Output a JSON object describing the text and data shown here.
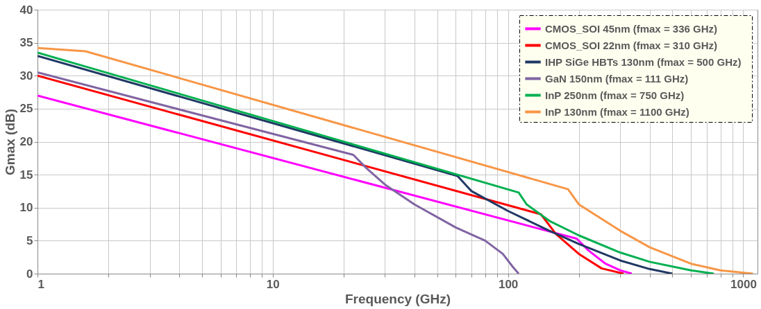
{
  "chart_data": {
    "type": "line",
    "xlabel": "Frequency (GHz)",
    "ylabel": "Gmax (dB)",
    "xlim": [
      1,
      1150
    ],
    "ylim": [
      0,
      40
    ],
    "xticks": [
      1,
      {
        "value": 2,
        "label": null
      },
      {
        "value": 3,
        "label": null
      },
      {
        "value": 4,
        "label": null
      },
      {
        "value": 5,
        "label": null
      },
      {
        "value": 6,
        "label": null
      },
      {
        "value": 7,
        "label": null
      },
      {
        "value": 8,
        "label": null
      },
      {
        "value": 9,
        "label": null
      },
      10,
      {
        "value": 20,
        "label": null
      },
      {
        "value": 30,
        "label": null
      },
      {
        "value": 40,
        "label": null
      },
      {
        "value": 50,
        "label": null
      },
      {
        "value": 60,
        "label": null
      },
      {
        "value": 70,
        "label": null
      },
      {
        "value": 80,
        "label": null
      },
      {
        "value": 90,
        "label": null
      },
      100,
      {
        "value": 200,
        "label": null
      },
      {
        "value": 300,
        "label": null
      },
      {
        "value": 400,
        "label": null
      },
      {
        "value": 500,
        "label": null
      },
      {
        "value": 600,
        "label": null
      },
      {
        "value": 700,
        "label": null
      },
      {
        "value": 800,
        "label": null
      },
      {
        "value": 900,
        "label": null
      },
      1000
    ],
    "yticks": [
      0,
      5,
      10,
      15,
      20,
      25,
      30,
      35,
      40
    ],
    "log": "x",
    "grid": true,
    "legend": "top right",
    "marker": "none",
    "line_style": "solid",
    "series": [
      {
        "name": "CMOS_SOI 45nm (fmax = 336 GHz)",
        "color": "#ff00ff",
        "x": [
          1,
          196,
          220,
          260,
          300,
          336
        ],
        "values": [
          27,
          5.3,
          3.5,
          1.5,
          0.5,
          0
        ]
      },
      {
        "name": "CMOS_SOI 22nm (fmax = 310 GHz)",
        "color": "#ff0000",
        "x": [
          1,
          138,
          160,
          200,
          250,
          310
        ],
        "values": [
          30,
          9,
          6,
          3,
          0.8,
          0
        ]
      },
      {
        "name": "IHP SiGe HBTs 130nm   (fmax = 500 GHz)",
        "color": "#1f3864",
        "x": [
          1,
          61,
          70,
          100,
          150,
          200,
          300,
          400,
          500
        ],
        "values": [
          33,
          14.8,
          12.5,
          9.5,
          6.5,
          4.5,
          2,
          0.7,
          0
        ]
      },
      {
        "name": "GaN 150nm (fmax = 111 GHz)",
        "color": "#8064a2",
        "x": [
          1,
          22,
          25,
          30,
          40,
          60,
          80,
          95,
          105,
          111
        ],
        "values": [
          30.5,
          18,
          16,
          13.5,
          10.5,
          7,
          5,
          3,
          1,
          0
        ]
      },
      {
        "name": "InP 250nm (fmax = 750 GHz)",
        "color": "#00b050",
        "x": [
          1,
          111,
          120,
          150,
          200,
          300,
          400,
          600,
          750
        ],
        "values": [
          33.5,
          12.3,
          10.5,
          8,
          5.8,
          3.2,
          1.8,
          0.5,
          0
        ]
      },
      {
        "name": "InP 130nm (fmax = 1100 GHz)",
        "color": "#f79646",
        "x": [
          1,
          1.6,
          180,
          200,
          300,
          400,
          600,
          800,
          1100
        ],
        "values": [
          34.2,
          33.7,
          12.8,
          10.5,
          6.5,
          4,
          1.5,
          0.5,
          0
        ]
      }
    ]
  }
}
